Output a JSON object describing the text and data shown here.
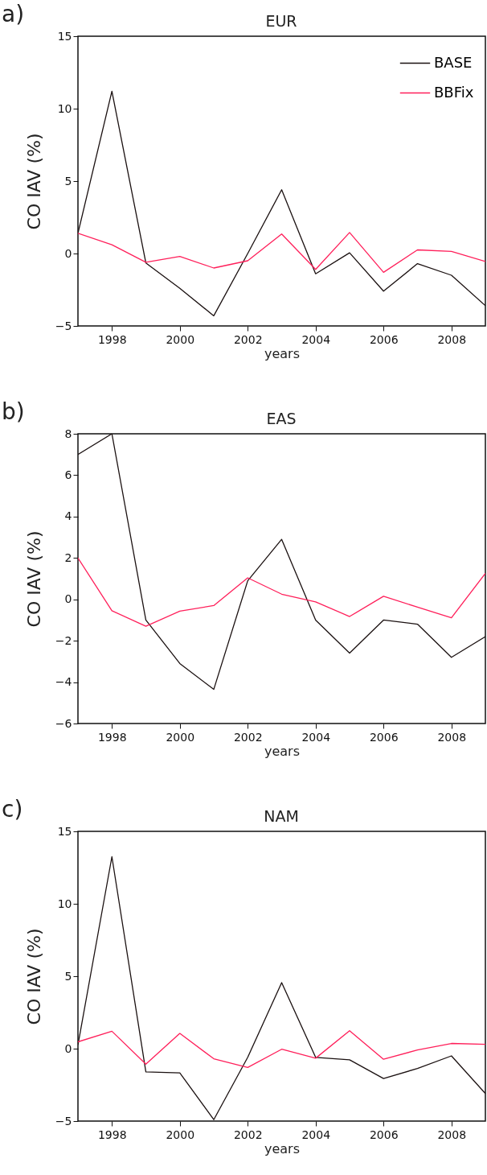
{
  "chart_data": [
    {
      "type": "line",
      "title": "EUR",
      "xlabel": "years",
      "ylabel": "CO IAV  (%)",
      "annotations": [
        "a)"
      ],
      "x": [
        1997,
        1998,
        1999,
        2000,
        2001,
        2002,
        2003,
        2004,
        2005,
        2006,
        2007,
        2008,
        2009
      ],
      "xlim": [
        1997,
        2009
      ],
      "xticks": [
        1998,
        2000,
        2002,
        2004,
        2006,
        2008
      ],
      "ylim": [
        -5,
        15
      ],
      "yticks": [
        -5,
        0,
        5,
        10,
        15
      ],
      "grid": false,
      "legend": "top right",
      "series": [
        {
          "name": "BASE",
          "color": "#1a1010",
          "values": [
            1.4,
            11.2,
            -0.65,
            -2.4,
            -4.3,
            0,
            4.4,
            -1.4,
            0.05,
            -2.6,
            -0.7,
            -1.5,
            -3.6
          ]
        },
        {
          "name": "BBFix",
          "color": "#ff1f5a",
          "values": [
            1.4,
            0.6,
            -0.6,
            -0.2,
            -1.0,
            -0.5,
            1.35,
            -1.1,
            1.45,
            -1.3,
            0.25,
            0.15,
            -0.55
          ]
        }
      ]
    },
    {
      "type": "line",
      "title": "EAS",
      "xlabel": "years",
      "ylabel": "CO IAV  (%)",
      "annotations": [
        "b)"
      ],
      "x": [
        1997,
        1998,
        1999,
        2000,
        2001,
        2002,
        2003,
        2004,
        2005,
        2006,
        2007,
        2008,
        2009
      ],
      "xlim": [
        1997,
        2009
      ],
      "xticks": [
        1998,
        2000,
        2002,
        2004,
        2006,
        2008
      ],
      "ylim": [
        -6,
        8
      ],
      "yticks": [
        -6,
        -4,
        -2,
        0,
        2,
        4,
        6,
        8
      ],
      "grid": false,
      "series": [
        {
          "color": "#1a1010",
          "values": [
            7.0,
            8.0,
            -1.0,
            -3.1,
            -4.35,
            0.9,
            2.9,
            -1.0,
            -2.6,
            -1.0,
            -1.2,
            -2.8,
            -1.8
          ]
        },
        {
          "color": "#ff1f5a",
          "values": [
            2.0,
            -0.55,
            -1.3,
            -0.57,
            -0.3,
            1.04,
            0.25,
            -0.12,
            -0.83,
            0.15,
            -0.38,
            -0.89,
            1.26
          ]
        }
      ]
    },
    {
      "type": "line",
      "title": "NAM",
      "xlabel": "years",
      "ylabel": "CO IAV  (%)",
      "annotations": [
        "c)"
      ],
      "x": [
        1997,
        1998,
        1999,
        2000,
        2001,
        2002,
        2003,
        2004,
        2005,
        2006,
        2007,
        2008,
        2009
      ],
      "xlim": [
        1997,
        2009
      ],
      "xticks": [
        1998,
        2000,
        2002,
        2004,
        2006,
        2008
      ],
      "ylim": [
        -5,
        15
      ],
      "yticks": [
        -5,
        0,
        5,
        10,
        15
      ],
      "grid": false,
      "series": [
        {
          "color": "#1a1010",
          "values": [
            0.26,
            13.25,
            -1.6,
            -1.67,
            -4.9,
            -0.6,
            4.56,
            -0.6,
            -0.77,
            -2.06,
            -1.37,
            -0.5,
            -3.1
          ]
        },
        {
          "color": "#ff1f5a",
          "values": [
            0.47,
            1.2,
            -1.07,
            1.05,
            -0.7,
            -1.3,
            -0.04,
            -0.66,
            1.24,
            -0.73,
            -0.09,
            0.36,
            0.3
          ]
        }
      ]
    }
  ]
}
